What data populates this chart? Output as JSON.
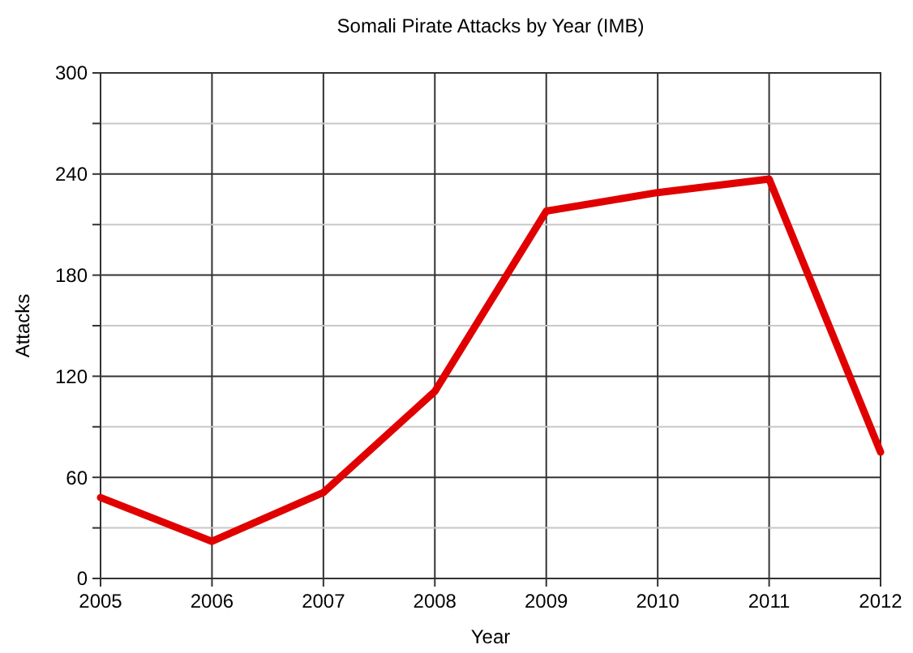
{
  "chart_data": {
    "type": "line",
    "title": "Somali Pirate Attacks by Year (IMB)",
    "xlabel": "Year",
    "ylabel": "Attacks",
    "x": [
      2005,
      2006,
      2007,
      2008,
      2009,
      2010,
      2011,
      2012
    ],
    "series": [
      {
        "color": "#e00000",
        "values": [
          48,
          22,
          51,
          111,
          218,
          229,
          237,
          75
        ]
      }
    ],
    "xlim": [
      2005,
      2012
    ],
    "xticks": [
      2005,
      2006,
      2007,
      2008,
      2009,
      2010,
      2011,
      2012
    ],
    "ylim": [
      0,
      300
    ],
    "yticks": [
      0,
      {
        "value": 30,
        "label": null
      },
      60,
      {
        "value": 90,
        "label": null
      },
      120,
      {
        "value": 150,
        "label": null
      },
      180,
      {
        "value": 210,
        "label": null
      },
      240,
      {
        "value": 270,
        "label": null
      },
      300
    ],
    "grid": true,
    "marker": "none",
    "line_style": "solid"
  }
}
